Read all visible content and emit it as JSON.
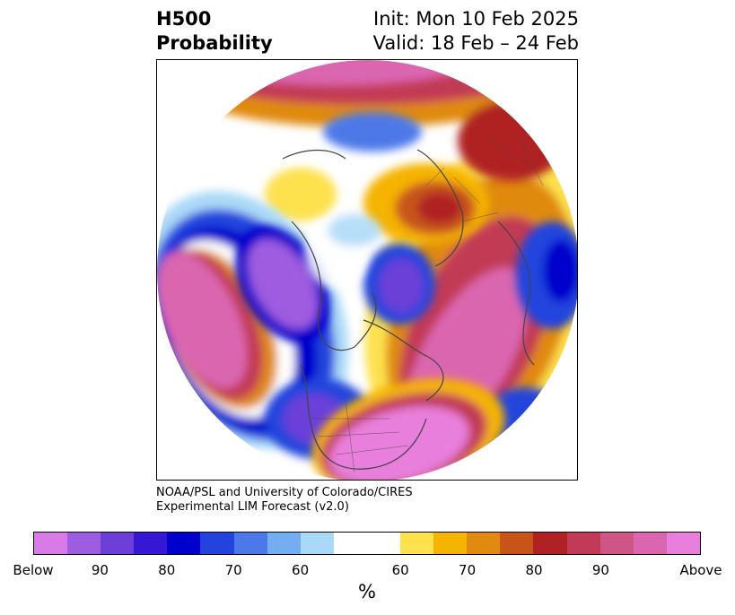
{
  "title": {
    "line1": "H500",
    "line2": "Probability",
    "init": "Init: Mon 10 Feb 2025",
    "valid": "Valid: 18 Feb – 24 Feb"
  },
  "credits": {
    "line1": "NOAA/PSL and University of Colorado/CIRES",
    "line2": "Experimental LIM Forecast (v2.0)"
  },
  "colorbar": {
    "unit": "%",
    "colors": [
      "#d97be6",
      "#9e5ce0",
      "#6b3fd8",
      "#3617d4",
      "#0000cc",
      "#2244dd",
      "#4d79e8",
      "#74aef0",
      "#aad9f7",
      "#ffffff",
      "#ffffff",
      "#fde14d",
      "#f5b400",
      "#e08a10",
      "#c8541a",
      "#b02124",
      "#c23a55",
      "#cf5587",
      "#db66b0",
      "#e87fdc"
    ],
    "tick_labels": [
      "Below",
      "90",
      "80",
      "70",
      "60",
      "60",
      "70",
      "80",
      "90",
      "Above"
    ]
  },
  "legend_colors": {
    "below_extreme": "#d97be6",
    "below_high": "#0000cc",
    "above_high": "#b02124",
    "above_extreme": "#e87fdc"
  }
}
